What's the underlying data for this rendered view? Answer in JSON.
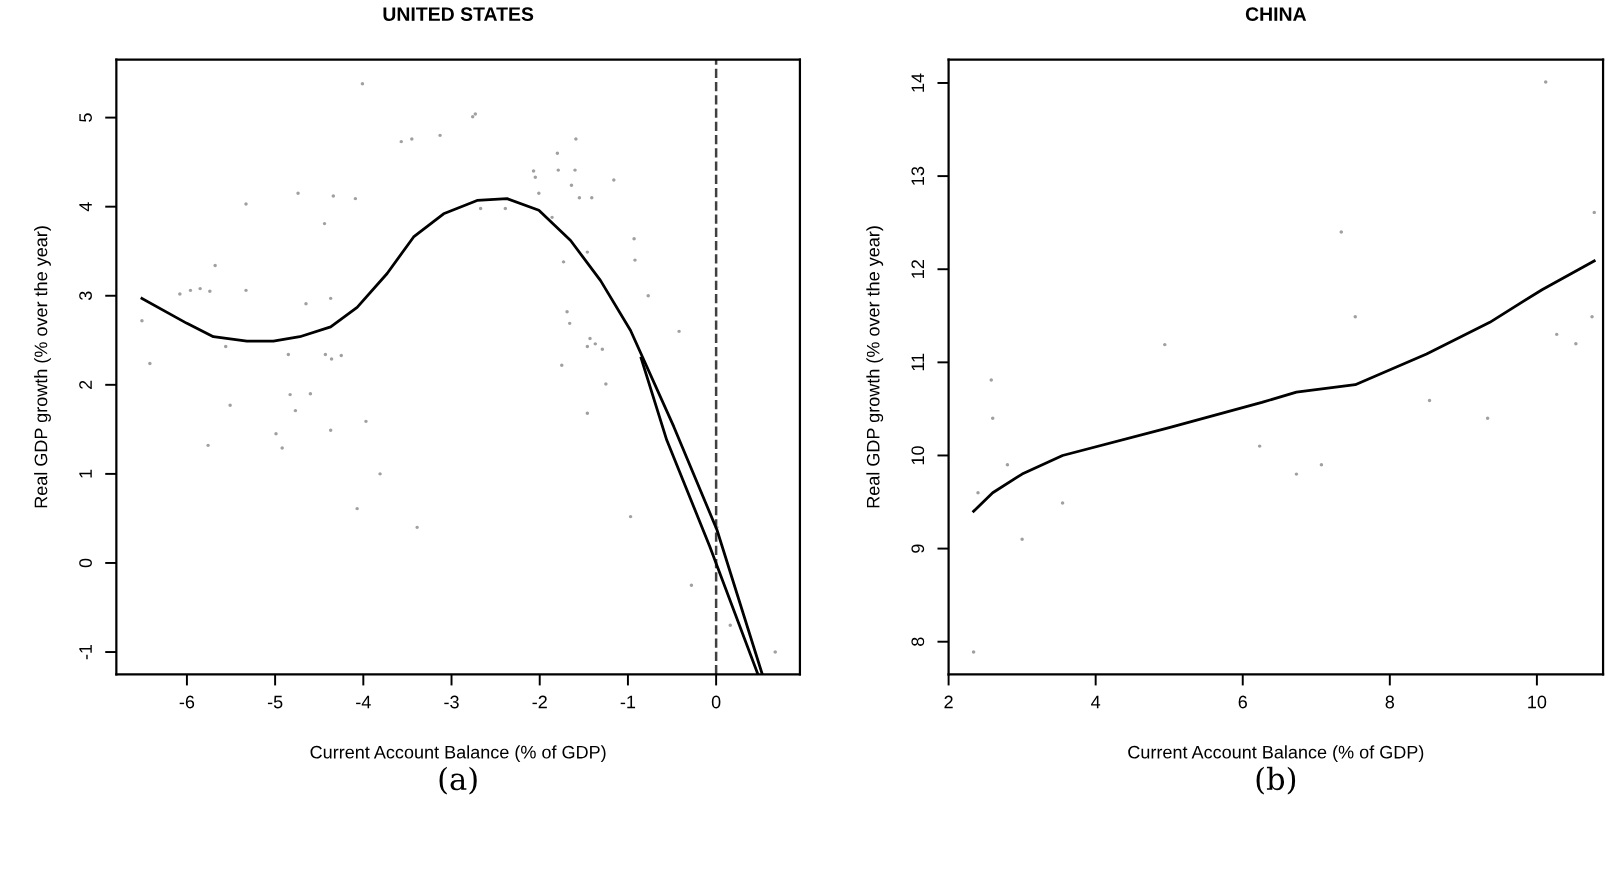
{
  "chart_data": [
    {
      "type": "scatter",
      "title": "UNITED STATES",
      "xlabel": "Current Account Balance (% of GDP)",
      "ylabel": "Real GDP growth (% over the year)",
      "xlim": [
        -6.8,
        0.95
      ],
      "ylim": [
        -1.25,
        5.65
      ],
      "xticks": [
        -6,
        -5,
        -4,
        -3,
        -2,
        -1,
        0
      ],
      "yticks": [
        -1,
        0,
        1,
        2,
        3,
        4,
        5
      ],
      "grid": false,
      "legend": false,
      "ref_lines": [
        {
          "axis": "x",
          "value": 0,
          "line_style": "dashed",
          "color": "#404040"
        }
      ],
      "annotations": [
        "(a)"
      ],
      "series": [
        {
          "type": "scatter",
          "color": "#a0a0a0",
          "x": [
            -6.51,
            -6.42,
            -6.08,
            -5.96,
            -5.85,
            -5.74,
            -5.68,
            -5.76,
            -5.56,
            -5.51,
            -5.33,
            -5.33,
            -4.99,
            -4.92,
            -4.85,
            -4.83,
            -4.77,
            -4.74,
            -4.65,
            -4.6,
            -4.44,
            -4.37,
            -4.43,
            -4.36,
            -4.37,
            -4.34,
            -4.25,
            -4.09,
            -4.01,
            -4.07,
            -3.97,
            -3.81,
            -3.57,
            -3.45,
            -3.39,
            -3.13,
            -2.76,
            -2.73,
            -2.67,
            -2.39,
            -2.07,
            -2.05,
            -2.01,
            -1.86,
            -1.8,
            -1.79,
            -1.73,
            -1.75,
            -1.69,
            -1.66,
            -1.64,
            -1.6,
            -1.59,
            -1.55,
            -1.46,
            -1.46,
            -1.43,
            -1.46,
            -1.41,
            -1.37,
            -1.29,
            -1.25,
            -1.16,
            -0.93,
            -0.92,
            -0.77,
            -0.97,
            -0.42,
            -0.28,
            0.01,
            0.16,
            0.67
          ],
          "values": [
            2.72,
            2.24,
            3.02,
            3.06,
            3.08,
            3.05,
            3.34,
            1.32,
            2.43,
            1.77,
            4.03,
            3.06,
            1.45,
            1.29,
            2.34,
            1.89,
            1.71,
            4.15,
            2.91,
            1.9,
            3.81,
            2.97,
            2.34,
            2.29,
            1.49,
            4.12,
            2.33,
            4.09,
            5.38,
            0.61,
            1.59,
            1.0,
            4.73,
            4.76,
            0.4,
            4.8,
            5.01,
            5.04,
            3.98,
            3.98,
            4.4,
            4.33,
            4.15,
            3.88,
            4.6,
            4.41,
            3.38,
            2.22,
            2.82,
            2.69,
            4.24,
            4.41,
            4.76,
            4.1,
            3.49,
            2.43,
            2.52,
            1.68,
            4.1,
            2.46,
            2.4,
            2.01,
            4.3,
            3.64,
            3.4,
            3.0,
            0.52,
            2.6,
            -0.25,
            0.4,
            -0.7,
            -1.0
          ]
        },
        {
          "type": "line",
          "color": "#000000",
          "x": [
            -6.51,
            -6.0,
            -5.7,
            -5.32,
            -5.02,
            -4.72,
            -4.37,
            -4.07,
            -3.73,
            -3.43,
            -3.09,
            -2.71,
            -2.37,
            -2.01,
            -1.65,
            -1.31,
            -0.97,
            -0.48,
            0.01,
            0.52
          ],
          "values": [
            2.97,
            2.69,
            2.54,
            2.49,
            2.49,
            2.54,
            2.65,
            2.87,
            3.25,
            3.66,
            3.92,
            4.07,
            4.09,
            3.96,
            3.62,
            3.17,
            2.61,
            1.53,
            0.37,
            -1.24
          ]
        },
        {
          "type": "line",
          "color": "#000000",
          "x": [
            -0.85,
            -0.56,
            -0.07,
            0.47
          ],
          "values": [
            2.3,
            1.38,
            0.18,
            -1.24
          ]
        }
      ]
    },
    {
      "type": "scatter",
      "title": "CHINA",
      "xlabel": "Current Account Balance (% of GDP)",
      "ylabel": "Real GDP growth (% over the year)",
      "xlim": [
        2,
        10.9
      ],
      "ylim": [
        7.65,
        14.25
      ],
      "xticks": [
        2,
        4,
        6,
        8,
        10
      ],
      "yticks": [
        8,
        9,
        10,
        11,
        12,
        13,
        14
      ],
      "grid": false,
      "legend": false,
      "annotations": [
        "(b)"
      ],
      "series": [
        {
          "type": "scatter",
          "color": "#a0a0a0",
          "x": [
            2.34,
            2.4,
            2.58,
            2.6,
            2.8,
            3.0,
            3.55,
            4.94,
            6.23,
            6.73,
            7.07,
            7.34,
            7.53,
            8.54,
            9.33,
            10.12,
            10.27,
            10.53,
            10.75,
            10.78
          ],
          "values": [
            7.89,
            9.6,
            10.81,
            10.4,
            9.9,
            9.1,
            9.49,
            11.19,
            10.1,
            9.8,
            9.9,
            12.4,
            11.49,
            10.59,
            10.4,
            14.01,
            11.3,
            11.2,
            11.49,
            12.61
          ]
        },
        {
          "type": "line",
          "color": "#000000",
          "x": [
            2.34,
            2.6,
            3.0,
            3.55,
            5.0,
            6.26,
            6.73,
            7.53,
            8.5,
            9.36,
            10.07,
            10.78
          ],
          "values": [
            9.4,
            9.6,
            9.8,
            10.0,
            10.3,
            10.57,
            10.68,
            10.76,
            11.09,
            11.43,
            11.78,
            12.09
          ]
        }
      ]
    }
  ]
}
